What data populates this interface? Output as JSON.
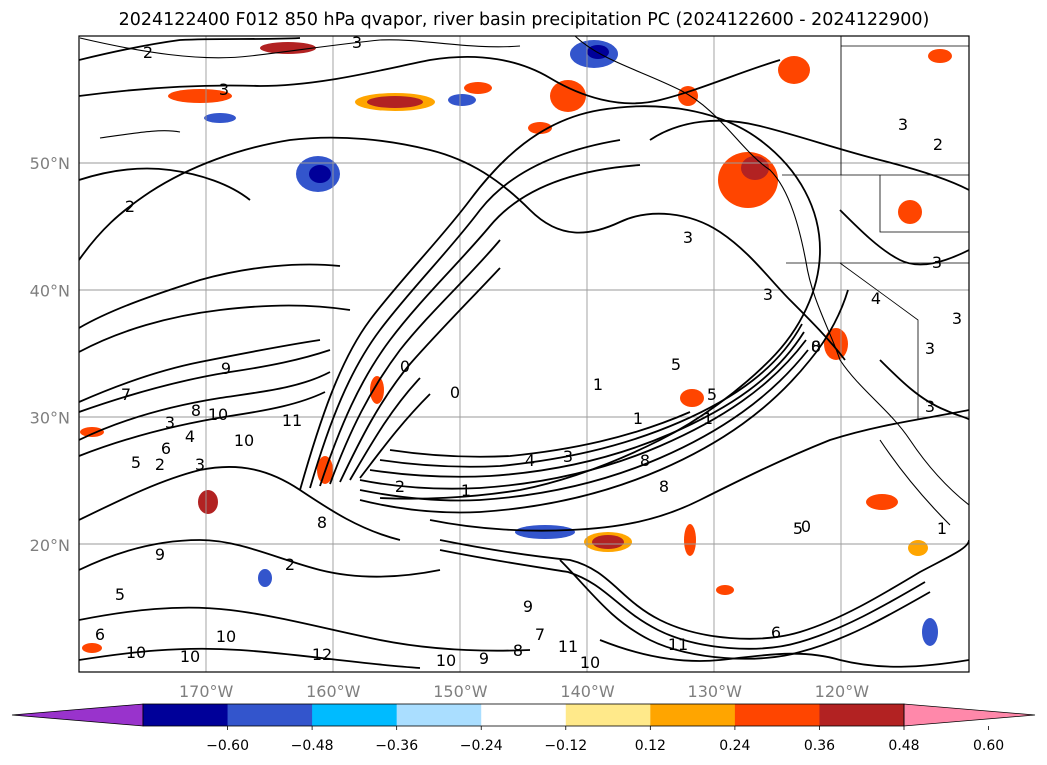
{
  "chart_data": {
    "type": "contour",
    "title": "2024122400 F012 850 hPa qvapor, river basin precipitation PC (2024122600 - 2024122900)",
    "x_axis": {
      "ticks": [
        -170,
        -160,
        -150,
        -140,
        -130,
        -120
      ],
      "tick_labels": [
        "170°W",
        "160°W",
        "150°W",
        "140°W",
        "130°W",
        "120°W"
      ]
    },
    "y_axis": {
      "ticks": [
        20,
        30,
        40,
        50
      ],
      "tick_labels": [
        "20°N",
        "30°N",
        "40°N",
        "50°N"
      ]
    },
    "grid": true,
    "colorbar": {
      "orientation": "horizontal",
      "extend": "both",
      "ticks": [
        -0.6,
        -0.48,
        -0.36,
        -0.24,
        -0.12,
        0.12,
        0.24,
        0.36,
        0.48,
        0.6
      ],
      "tick_labels": [
        "−0.60",
        "−0.48",
        "−0.36",
        "−0.24",
        "−0.12",
        "0.12",
        "0.24",
        "0.36",
        "0.48",
        "0.60"
      ],
      "colors": [
        "#9933cc",
        "#000099",
        "#3355cc",
        "#00bbff",
        "#aadeff",
        "#ffffff",
        "#ffe98a",
        "#ffa500",
        "#ff4500",
        "#b22222",
        "#ff88aa"
      ]
    },
    "contour_labels": [
      "2",
      "3",
      "3",
      "3",
      "2",
      "2",
      "3",
      "3",
      "3",
      "3",
      "0",
      "0",
      "1",
      "1",
      "5",
      "5",
      "4",
      "3",
      "1",
      "1",
      "0",
      "8",
      "8",
      "9",
      "7",
      "11",
      "10",
      "10",
      "8",
      "6",
      "5",
      "4",
      "3",
      "2",
      "2",
      "9",
      "10",
      "10",
      "11",
      "12",
      "11",
      "10",
      "10",
      "9",
      "8",
      "7",
      "6",
      "5",
      "0",
      "1",
      "3",
      "3",
      "8",
      "4",
      "10",
      "6",
      "9",
      "8",
      "3",
      "2",
      "5"
    ]
  }
}
